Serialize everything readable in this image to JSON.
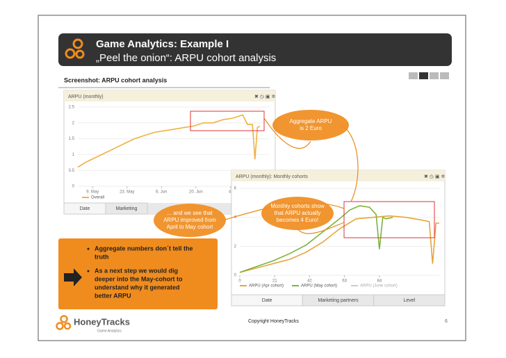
{
  "header": {
    "title": "Game Analytics: Example I",
    "subtitle": "„Peel the onion“: ARPU cohort analysis"
  },
  "section_label": "Screenshot: ARPU cohort analysis",
  "callouts": [
    [
      "Aggregate ARPU",
      "is 2 Euro"
    ],
    [
      "Monthly cohorts show",
      "that ARPU actually",
      "becomes 4 Euro!"
    ],
    [
      "... and we see that",
      "ARPU improved from",
      "April to May cohort"
    ]
  ],
  "bullets": [
    [
      "Aggregate numbers don´t tell the",
      "truth"
    ],
    [
      "As a next step we would dig",
      "deeper into the May-cohort to",
      "understand why it generated",
      "better ARPU"
    ]
  ],
  "footer": {
    "logo": "HoneyTracks",
    "logo_sub": "Game Analytics",
    "copyright": "Copyright HoneyTracks",
    "page": "6"
  },
  "chart_data": [
    {
      "type": "line",
      "title": "ARPU (monthly)",
      "xlim": [
        3,
        81
      ],
      "xticks": [
        {
          "value": 9,
          "label": "9. May"
        },
        {
          "value": 23,
          "label": "23. May"
        },
        {
          "value": 37,
          "label": "6. Jun"
        },
        {
          "value": 51,
          "label": "20. Jun"
        },
        {
          "value": 65,
          "label": "4."
        }
      ],
      "ylim": [
        0,
        2.5
      ],
      "yticks": [
        0,
        0.5,
        1,
        1.5,
        2,
        2.5
      ],
      "grid": true,
      "series": [
        {
          "name": "Overall",
          "color": "#f0b040",
          "x": [
            3,
            6,
            10,
            14,
            18,
            22,
            26,
            30,
            34,
            38,
            42,
            46,
            50,
            54,
            58,
            62,
            66,
            70,
            72,
            74,
            75,
            76,
            77
          ],
          "values": [
            0.6,
            0.75,
            0.9,
            1.05,
            1.2,
            1.35,
            1.5,
            1.6,
            1.7,
            1.75,
            1.8,
            1.85,
            1.9,
            2.0,
            2.0,
            2.1,
            2.15,
            2.25,
            1.95,
            1.95,
            0.85,
            1.85,
            1.9
          ]
        }
      ],
      "tabs": [
        "Date",
        "Marketing"
      ]
    },
    {
      "type": "line",
      "title": "ARPU (monthly): Monthly cohorts",
      "xlim": [
        0,
        120
      ],
      "xticks": [
        0,
        21,
        42,
        63,
        84
      ],
      "ylim": [
        0,
        6
      ],
      "yticks": [
        0,
        2,
        4,
        6
      ],
      "grid": true,
      "series": [
        {
          "name": "ARPU (Apr cohort)",
          "color": "#e8a33c",
          "x": [
            0,
            10,
            20,
            30,
            40,
            50,
            60,
            70,
            80,
            90,
            100,
            110,
            114,
            116,
            118,
            120
          ],
          "values": [
            0.2,
            0.5,
            0.8,
            1.1,
            1.6,
            2.3,
            3.2,
            3.9,
            4.0,
            4.1,
            4.0,
            3.8,
            3.7,
            0.8,
            3.6,
            3.6
          ]
        },
        {
          "name": "ARPU (May cohort)",
          "color": "#7bb33c",
          "x": [
            0,
            10,
            20,
            30,
            40,
            50,
            60,
            66,
            72,
            78,
            82,
            84,
            86,
            88,
            92
          ],
          "values": [
            0.2,
            0.6,
            1.0,
            1.5,
            2.1,
            3.0,
            3.9,
            4.5,
            4.8,
            4.7,
            4.2,
            1.8,
            4.0,
            3.9,
            4.0
          ]
        },
        {
          "name": "ARPU (June cohort)",
          "color": "#cccccc"
        }
      ],
      "tabs": [
        "Date",
        "Marketing partners",
        "Level"
      ]
    }
  ]
}
